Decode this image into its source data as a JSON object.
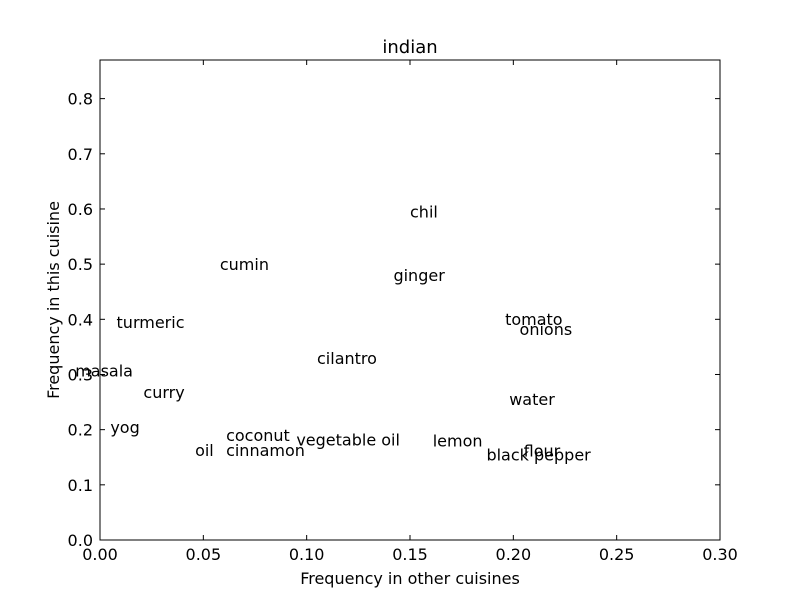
{
  "chart_data": {
    "type": "scatter",
    "title": "indian",
    "xlabel": "Frequency in other cuisines",
    "ylabel": "Frequency in this cuisine",
    "xlim": [
      0.0,
      0.3
    ],
    "ylim": [
      0.0,
      0.87
    ],
    "xticks": [
      "0.00",
      "0.05",
      "0.10",
      "0.15",
      "0.20",
      "0.25",
      "0.30"
    ],
    "yticks": [
      "0.0",
      "0.1",
      "0.2",
      "0.3",
      "0.4",
      "0.5",
      "0.6",
      "0.7",
      "0.8"
    ],
    "grid": false,
    "points": [
      {
        "label": "chil",
        "x": 0.15,
        "y": 0.595
      },
      {
        "label": "cumin",
        "x": 0.058,
        "y": 0.5
      },
      {
        "label": "ginger",
        "x": 0.142,
        "y": 0.48
      },
      {
        "label": "turmeric",
        "x": 0.008,
        "y": 0.395
      },
      {
        "label": "tomato",
        "x": 0.196,
        "y": 0.401
      },
      {
        "label": "onions",
        "x": 0.203,
        "y": 0.382
      },
      {
        "label": "cilantro",
        "x": 0.105,
        "y": 0.33
      },
      {
        "label": "masala",
        "x": -0.012,
        "y": 0.307
      },
      {
        "label": "curry",
        "x": 0.021,
        "y": 0.268
      },
      {
        "label": "water",
        "x": 0.198,
        "y": 0.256
      },
      {
        "label": "yog",
        "x": 0.005,
        "y": 0.205
      },
      {
        "label": "coconut",
        "x": 0.061,
        "y": 0.19
      },
      {
        "label": "vegetable oil",
        "x": 0.095,
        "y": 0.182
      },
      {
        "label": "lemon",
        "x": 0.161,
        "y": 0.18
      },
      {
        "label": "flour",
        "x": 0.205,
        "y": 0.162
      },
      {
        "label": "black pepper",
        "x": 0.187,
        "y": 0.155
      },
      {
        "label": "oil",
        "x": 0.046,
        "y": 0.163
      },
      {
        "label": "cinnamon",
        "x": 0.061,
        "y": 0.163
      }
    ]
  }
}
